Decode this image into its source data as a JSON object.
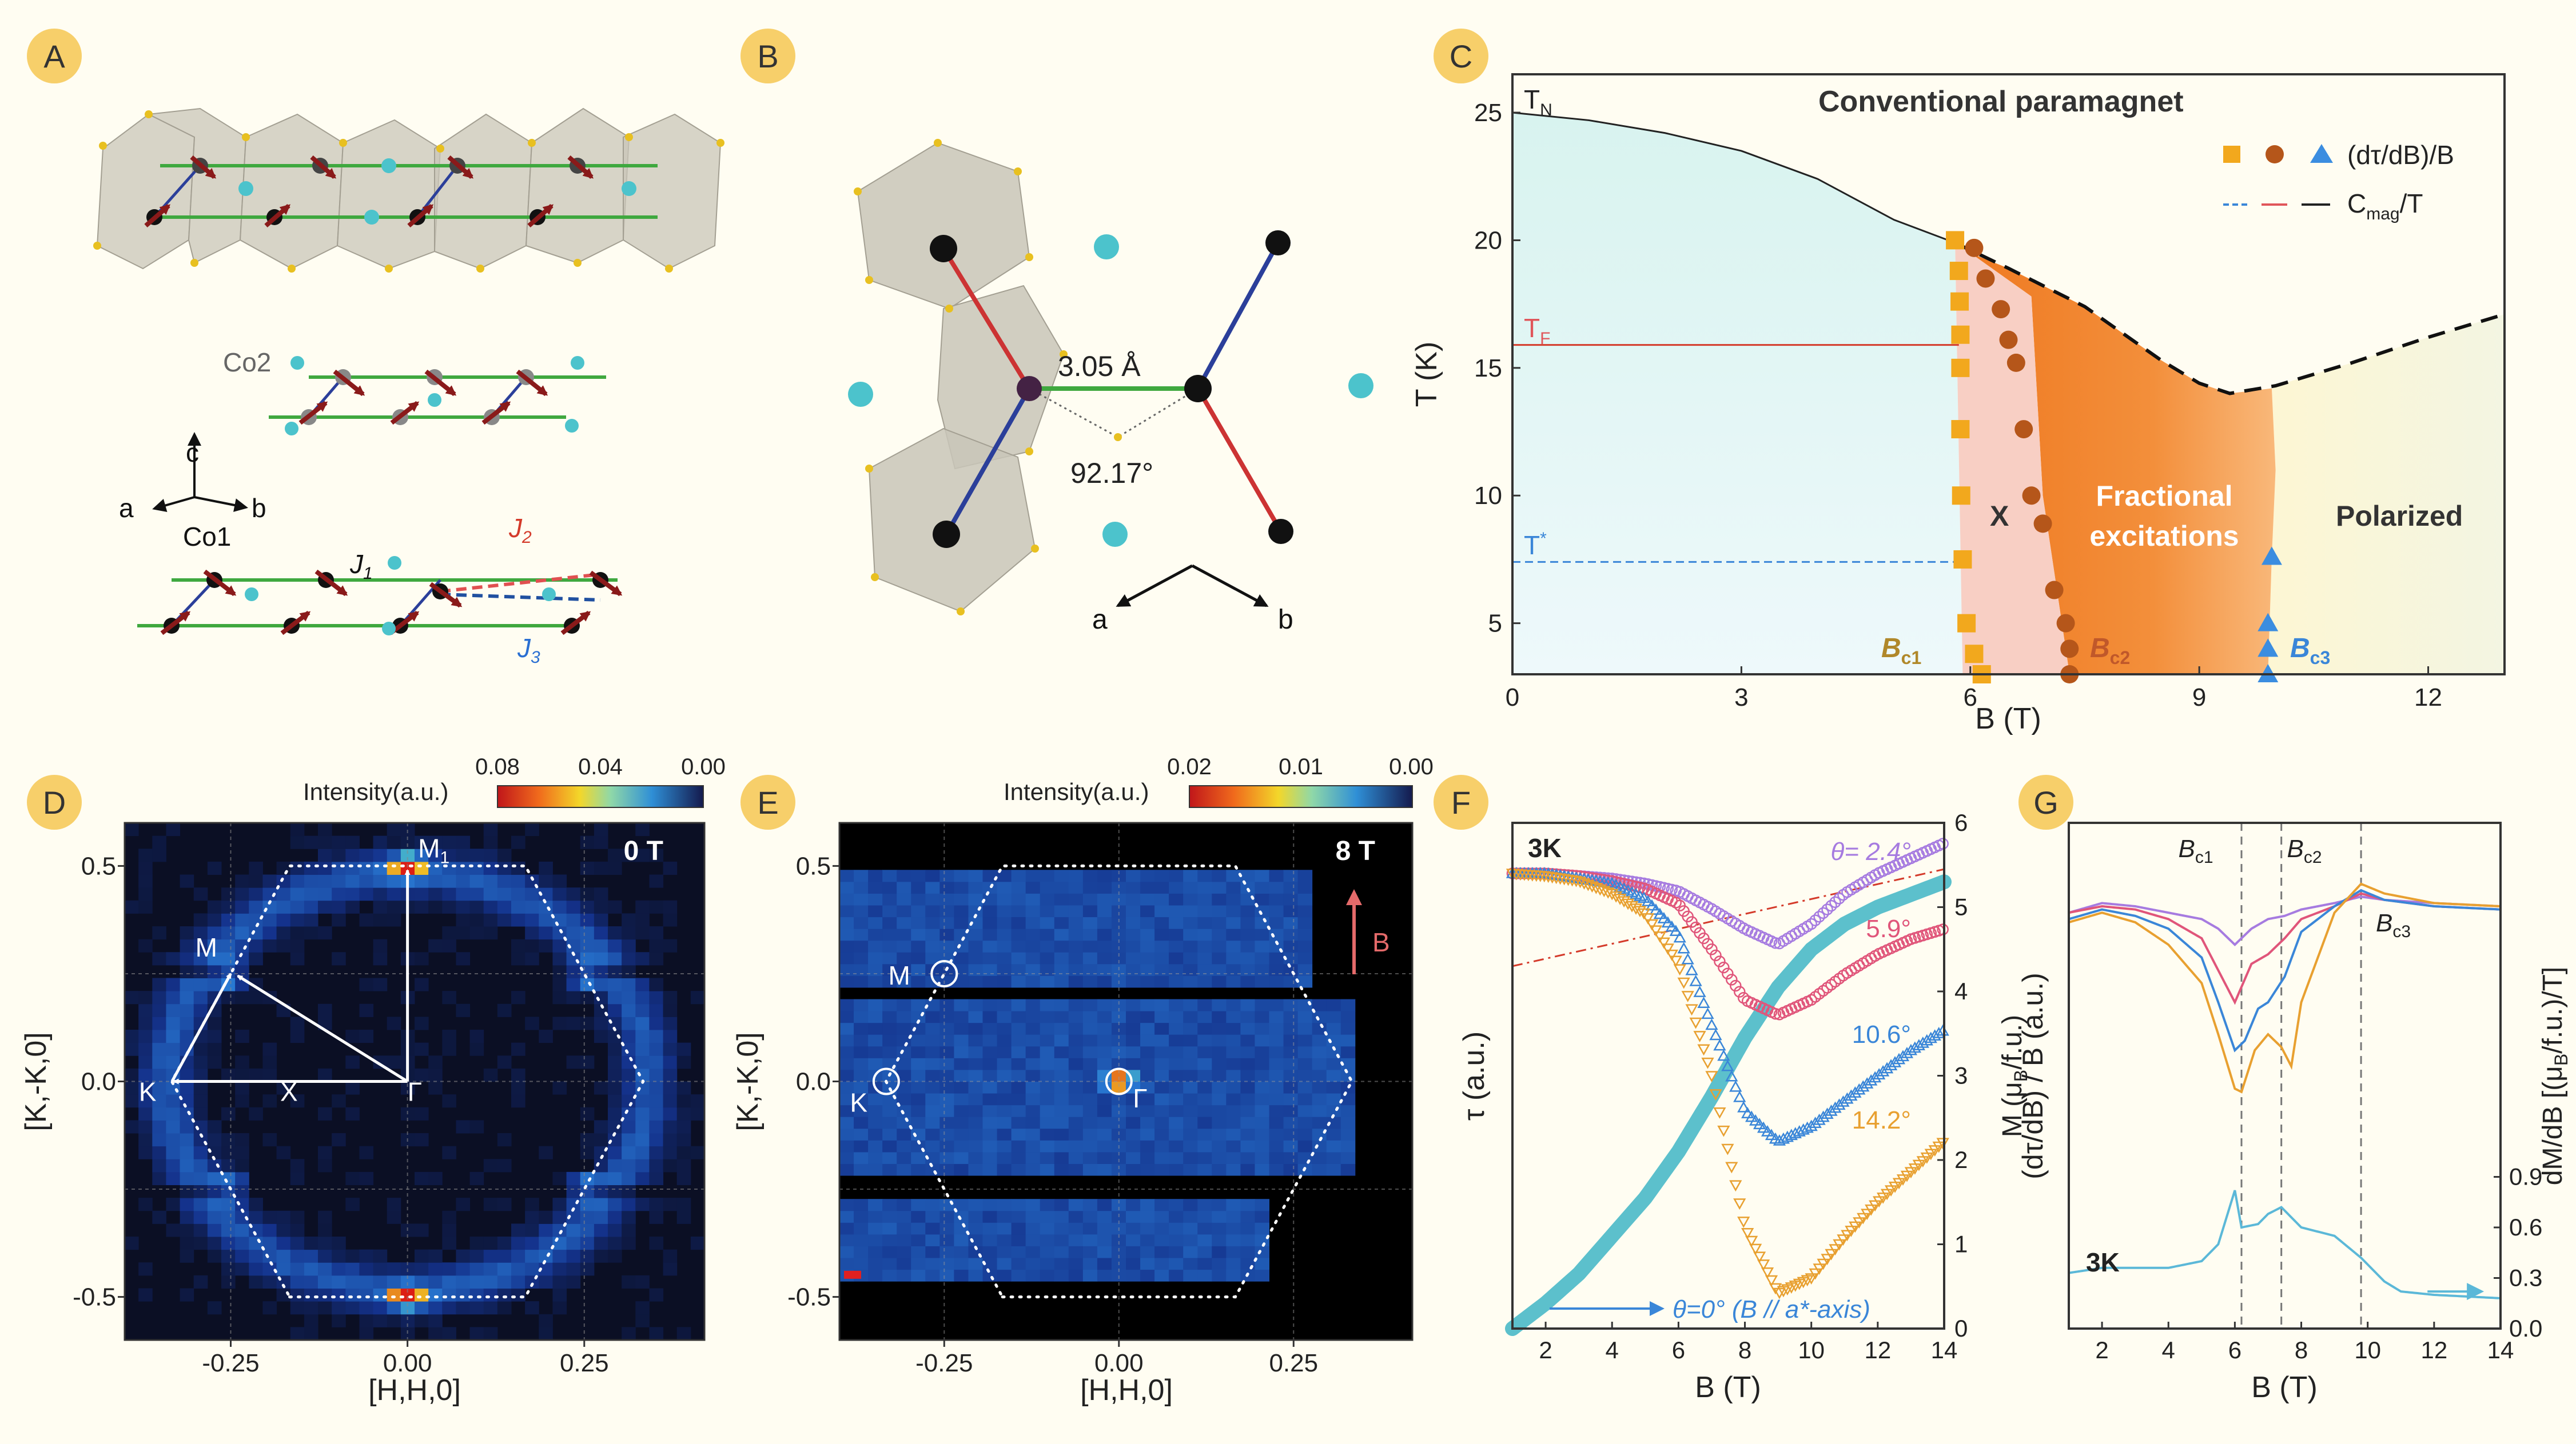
{
  "panels": {
    "A": {
      "letter": "A",
      "co2": "Co2",
      "co1": "Co1",
      "axis_c": "c",
      "axis_a": "a",
      "axis_b": "b",
      "j1": "J",
      "j1_sub": "1",
      "j2": "J",
      "j2_sub": "2",
      "j3": "J",
      "j3_sub": "3"
    },
    "B": {
      "letter": "B",
      "distance": "3.05 Å",
      "angle": "92.17°",
      "axis_a": "a",
      "axis_b": "b"
    },
    "C": {
      "letter": "C"
    },
    "D": {
      "letter": "D"
    },
    "E": {
      "letter": "E"
    },
    "F": {
      "letter": "F"
    },
    "G": {
      "letter": "G"
    }
  },
  "colors": {
    "orange_sq": "#f2a81d",
    "brown_dot": "#b5561a",
    "blue_tri": "#3b8de0",
    "cyan": "#5cc0cc",
    "purple": "#a67be0",
    "pink": "#e0557a",
    "blue": "#3a86d8",
    "orange": "#e8a030",
    "red": "#d43a2a"
  },
  "chart_data": [
    {
      "id": "C",
      "type": "phase-diagram",
      "xlabel": "B (T)",
      "ylabel": "T (K)",
      "xlim": [
        0,
        13
      ],
      "ylim": [
        3,
        26.5
      ],
      "xticks": [
        "0",
        "3",
        "6",
        "9",
        "12"
      ],
      "xtick_values": [
        0,
        3,
        6,
        9,
        12
      ],
      "yticks": [
        "5",
        "10",
        "15",
        "20",
        "25"
      ],
      "ytick_values": [
        5,
        10,
        15,
        20,
        25
      ],
      "texts": {
        "tn": "T",
        "tn_sub": "N",
        "tf": "T",
        "tf_sub": "F",
        "tstar": "T",
        "tstar_sup": "*",
        "conventional": "Conventional paramagnet",
        "x": "X",
        "fractional1": "Fractional",
        "fractional2": "excitations",
        "polarized": "Polarized",
        "bc1": "B",
        "bc1_sub": "c1",
        "bc2": "B",
        "bc2_sub": "c2",
        "bc3": "B",
        "bc3_sub": "c3",
        "legend1": "(dτ/dB)/B",
        "legend2": "C",
        "legend2_sub": "mag",
        "legend2_tail": "/T"
      },
      "tn_line": [
        [
          0,
          25
        ],
        [
          1,
          24.7
        ],
        [
          2,
          24.2
        ],
        [
          3,
          23.5
        ],
        [
          4,
          22.4
        ],
        [
          5,
          20.8
        ],
        [
          5.8,
          19.9
        ]
      ],
      "tf_level": 15.9,
      "tstar_level": 7.4,
      "dashed_boundary": [
        [
          5.8,
          19.9
        ],
        [
          6.5,
          18.9
        ],
        [
          7.5,
          17.4
        ],
        [
          8.5,
          15.3
        ],
        [
          9.0,
          14.4
        ],
        [
          9.4,
          14.0
        ],
        [
          10.0,
          14.3
        ],
        [
          11,
          15.2
        ],
        [
          12,
          16.2
        ],
        [
          13,
          17.1
        ]
      ],
      "squares": [
        [
          5.8,
          20.0
        ],
        [
          5.85,
          18.8
        ],
        [
          5.86,
          17.6
        ],
        [
          5.87,
          16.3
        ],
        [
          5.87,
          15.0
        ],
        [
          5.87,
          12.6
        ],
        [
          5.88,
          10.0
        ],
        [
          5.9,
          7.5
        ],
        [
          5.95,
          5.0
        ],
        [
          6.05,
          3.8
        ],
        [
          6.15,
          3.0
        ]
      ],
      "circles": [
        [
          6.05,
          19.7
        ],
        [
          6.2,
          18.5
        ],
        [
          6.4,
          17.3
        ],
        [
          6.5,
          16.1
        ],
        [
          6.6,
          15.2
        ],
        [
          6.7,
          12.6
        ],
        [
          6.8,
          10.0
        ],
        [
          6.95,
          8.9
        ],
        [
          7.1,
          6.3
        ],
        [
          7.25,
          5.0
        ],
        [
          7.3,
          4.0
        ],
        [
          7.3,
          3.0
        ]
      ],
      "triangles": [
        [
          9.95,
          7.6
        ],
        [
          9.9,
          5.0
        ],
        [
          9.9,
          4.0
        ],
        [
          9.9,
          3.0
        ]
      ],
      "region_x_left": [
        [
          5.8,
          20
        ],
        [
          5.9,
          3
        ]
      ],
      "region_x_right": [
        [
          6.0,
          19.5
        ],
        [
          6.8,
          17.8
        ],
        [
          6.95,
          10
        ],
        [
          7.2,
          5
        ],
        [
          7.3,
          3
        ]
      ],
      "region_frac_right": [
        [
          9.95,
          14.2
        ],
        [
          10,
          11
        ],
        [
          9.95,
          7.6
        ],
        [
          9.9,
          3
        ]
      ]
    },
    {
      "id": "D",
      "type": "heatmap",
      "xlabel": "[H,H,0]",
      "ylabel": "[K,-K,0]",
      "xlim": [
        -0.4,
        0.42
      ],
      "ylim": [
        -0.6,
        0.6
      ],
      "xticks": [
        "-0.25",
        "0.00",
        "0.25"
      ],
      "xtick_values": [
        -0.25,
        0,
        0.25
      ],
      "yticks": [
        "0.5",
        "0.0",
        "-0.5"
      ],
      "ytick_values": [
        0.5,
        0,
        -0.5
      ],
      "field": "0 T",
      "colorbar_title": "Intensity(a.u.)",
      "colorbar_ticks": [
        "0.08",
        "0.04",
        "0.00"
      ],
      "points": {
        "m1": "M",
        "m1_sub": "1",
        "m": "M",
        "k": "K",
        "x": "X",
        "gamma": "Γ"
      },
      "hexagon": [
        [
          -0.1667,
          -0.5
        ],
        [
          0.1667,
          -0.5
        ],
        [
          0.3333,
          0
        ],
        [
          0.1667,
          0.5
        ],
        [
          -0.1667,
          0.5
        ],
        [
          -0.3333,
          0
        ]
      ],
      "peaks": [
        [
          0,
          0.5
        ],
        [
          -0.25,
          0.25
        ],
        [
          0.25,
          0.25
        ],
        [
          -0.25,
          -0.25
        ],
        [
          0.25,
          -0.25
        ],
        [
          0,
          -0.5
        ]
      ]
    },
    {
      "id": "E",
      "type": "heatmap",
      "xlabel": "[H,H,0]",
      "ylabel": "[K,-K,0]",
      "xlim": [
        -0.4,
        0.42
      ],
      "ylim": [
        -0.6,
        0.6
      ],
      "xticks": [
        "-0.25",
        "0.00",
        "0.25"
      ],
      "xtick_values": [
        -0.25,
        0,
        0.25
      ],
      "yticks": [
        "0.5",
        "0.0",
        "-0.5"
      ],
      "ytick_values": [
        0.5,
        0,
        -0.5
      ],
      "field": "8 T",
      "field_arrow": "B",
      "colorbar_title": "Intensity(a.u.)",
      "colorbar_ticks": [
        "0.02",
        "0.01",
        "0.00"
      ],
      "points": {
        "m": "M",
        "k": "K",
        "gamma": "Γ"
      }
    },
    {
      "id": "F",
      "type": "scatter-line",
      "xlabel": "B (T)",
      "ylabel": "τ (a.u.)",
      "y2label": "M (μ",
      "y2label_sub": "B",
      "y2label_tail": "/f.u.)",
      "xlim": [
        1,
        14
      ],
      "ylim": [
        0,
        1
      ],
      "y2lim": [
        0,
        6
      ],
      "xticks": [
        "2",
        "4",
        "6",
        "8",
        "10",
        "12",
        "14"
      ],
      "xtick_values": [
        2,
        4,
        6,
        8,
        10,
        12,
        14
      ],
      "y2ticks": [
        "0",
        "1",
        "2",
        "3",
        "4",
        "5",
        "6"
      ],
      "y2tick_values": [
        0,
        1,
        2,
        3,
        4,
        5,
        6
      ],
      "temperature": "3K",
      "series": [
        {
          "name": "θ= 2.4°",
          "color": "#a67be0",
          "x": [
            1,
            2,
            3,
            4,
            5,
            6,
            7,
            8,
            9,
            10,
            11,
            12,
            13,
            14
          ],
          "y": [
            0.9,
            0.9,
            0.895,
            0.89,
            0.88,
            0.865,
            0.83,
            0.79,
            0.76,
            0.8,
            0.86,
            0.9,
            0.93,
            0.96
          ]
        },
        {
          "name": "5.9°",
          "color": "#e0557a",
          "x": [
            1,
            2,
            3,
            4,
            5,
            6,
            7,
            8,
            9,
            10,
            11,
            12,
            13,
            14
          ],
          "y": [
            0.9,
            0.9,
            0.895,
            0.885,
            0.87,
            0.84,
            0.75,
            0.65,
            0.62,
            0.65,
            0.7,
            0.74,
            0.77,
            0.79
          ]
        },
        {
          "name": "10.6°",
          "color": "#3a86d8",
          "x": [
            1,
            2,
            3,
            4,
            5,
            6,
            7,
            8,
            9,
            10,
            11,
            12,
            13,
            14
          ],
          "y": [
            0.9,
            0.9,
            0.89,
            0.88,
            0.85,
            0.78,
            0.6,
            0.43,
            0.37,
            0.4,
            0.45,
            0.5,
            0.55,
            0.59
          ]
        },
        {
          "name": "14.2°",
          "color": "#e8a030",
          "x": [
            1,
            2,
            3,
            4,
            5,
            6,
            7,
            8,
            9,
            10,
            11,
            12,
            13,
            14
          ],
          "y": [
            0.9,
            0.895,
            0.885,
            0.86,
            0.82,
            0.72,
            0.5,
            0.2,
            0.07,
            0.1,
            0.18,
            0.25,
            0.31,
            0.37
          ]
        }
      ],
      "magnetization": {
        "name": "θ=0° (B // a*-axis)",
        "x": [
          1,
          2,
          3,
          4,
          5,
          6,
          7,
          8,
          9,
          10,
          11,
          12,
          13,
          14
        ],
        "y": [
          0,
          0.3,
          0.65,
          1.1,
          1.55,
          2.1,
          2.75,
          3.45,
          4.05,
          4.5,
          4.8,
          5.0,
          5.15,
          5.3
        ]
      },
      "dashdot": {
        "x": [
          1,
          14
        ],
        "y": [
          4.3,
          5.45
        ]
      }
    },
    {
      "id": "G",
      "type": "line",
      "xlabel": "B (T)",
      "ylabel": "(dτ/dB) / B (a.u.)",
      "y2label": "dM/dB [(μ",
      "y2label_sub": "B",
      "y2label_tail": "/f.u.)/T]",
      "xlim": [
        1,
        14
      ],
      "y2lim": [
        0,
        3.0
      ],
      "xticks": [
        "2",
        "4",
        "6",
        "8",
        "10",
        "12",
        "14"
      ],
      "xtick_values": [
        2,
        4,
        6,
        8,
        10,
        12,
        14
      ],
      "y2ticks": [
        "0.0",
        "0.3",
        "0.6",
        "0.9"
      ],
      "y2tick_values": [
        0,
        0.3,
        0.6,
        0.9
      ],
      "temperature": "3K",
      "vlines": {
        "Bc1": 6.2,
        "Bc2": 7.4,
        "Bc3": 9.8
      },
      "vline_labels": {
        "bc1": "B",
        "bc1_sub": "c1",
        "bc2": "B",
        "bc2_sub": "c2",
        "bc3": "B",
        "bc3_sub": "c3"
      },
      "series": [
        {
          "color": "#a67be0",
          "x": [
            1,
            2,
            3,
            4,
            5,
            5.5,
            6,
            6.5,
            7,
            7.5,
            8,
            9,
            9.8,
            10.5,
            12,
            14
          ],
          "y": [
            0.88,
            0.91,
            0.9,
            0.88,
            0.86,
            0.83,
            0.78,
            0.83,
            0.86,
            0.87,
            0.89,
            0.91,
            0.93,
            0.92,
            0.91,
            0.9
          ]
        },
        {
          "color": "#e0557a",
          "x": [
            1,
            2,
            3,
            4,
            5,
            5.5,
            6,
            6.5,
            7,
            7.5,
            8,
            9,
            9.8,
            10.5,
            12,
            14
          ],
          "y": [
            0.88,
            0.9,
            0.89,
            0.86,
            0.8,
            0.7,
            0.6,
            0.72,
            0.75,
            0.8,
            0.86,
            0.9,
            0.94,
            0.92,
            0.9,
            0.89
          ]
        },
        {
          "color": "#3a86d8",
          "x": [
            1,
            2,
            3,
            4,
            5,
            5.5,
            6,
            6.3,
            6.7,
            7,
            7.5,
            8,
            9,
            9.8,
            10.5,
            12,
            14
          ],
          "y": [
            0.86,
            0.89,
            0.87,
            0.83,
            0.74,
            0.6,
            0.45,
            0.48,
            0.58,
            0.6,
            0.68,
            0.82,
            0.9,
            0.95,
            0.92,
            0.9,
            0.89
          ]
        },
        {
          "color": "#e8a030",
          "x": [
            1,
            2,
            3,
            4,
            5,
            5.5,
            6,
            6.2,
            6.6,
            7,
            7.4,
            7.7,
            8,
            9,
            9.8,
            10.5,
            12,
            14
          ],
          "y": [
            0.85,
            0.88,
            0.85,
            0.78,
            0.66,
            0.5,
            0.33,
            0.32,
            0.45,
            0.5,
            0.46,
            0.4,
            0.6,
            0.88,
            0.97,
            0.94,
            0.91,
            0.9
          ]
        }
      ],
      "dmdb": {
        "color": "#5bb8d8",
        "x": [
          1,
          2,
          3,
          4,
          5,
          5.5,
          6,
          6.2,
          6.7,
          7,
          7.4,
          8,
          9,
          9.8,
          10.5,
          11,
          12,
          13,
          14
        ],
        "y": [
          0.33,
          0.36,
          0.36,
          0.36,
          0.4,
          0.5,
          0.82,
          0.6,
          0.62,
          0.68,
          0.72,
          0.6,
          0.55,
          0.42,
          0.28,
          0.22,
          0.2,
          0.19,
          0.18
        ]
      }
    }
  ]
}
